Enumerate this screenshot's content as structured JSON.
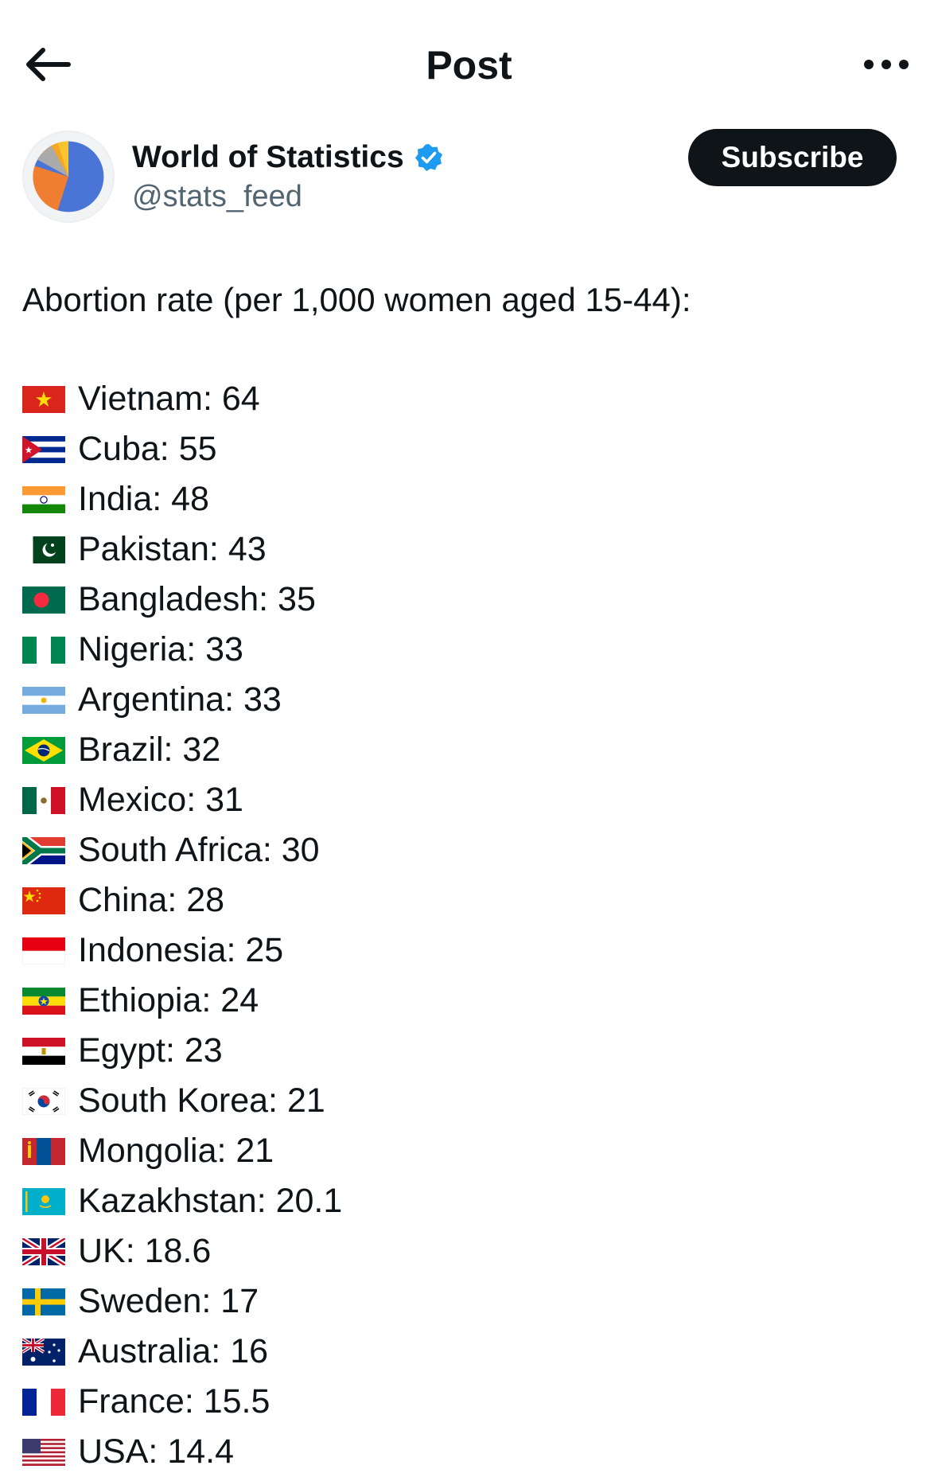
{
  "header": {
    "title": "Post",
    "back_icon": "arrow-left-icon",
    "more_icon": "more-horizontal-icon"
  },
  "author": {
    "name": "World of Statistics",
    "handle": "@stats_feed",
    "verified": true,
    "verified_color": "#1d9bf0",
    "avatar_icon": "pie-chart-avatar",
    "subscribe_label": "Subscribe"
  },
  "post": {
    "intro": "Abortion rate (per 1,000 women aged 15-44):",
    "items": [
      {
        "flag": "vietnam-flag-icon",
        "text": "Vietnam: 64"
      },
      {
        "flag": "cuba-flag-icon",
        "text": "Cuba: 55"
      },
      {
        "flag": "india-flag-icon",
        "text": "India: 48"
      },
      {
        "flag": "pakistan-flag-icon",
        "text": "Pakistan: 43"
      },
      {
        "flag": "bangladesh-flag-icon",
        "text": "Bangladesh: 35"
      },
      {
        "flag": "nigeria-flag-icon",
        "text": "Nigeria: 33"
      },
      {
        "flag": "argentina-flag-icon",
        "text": "Argentina: 33"
      },
      {
        "flag": "brazil-flag-icon",
        "text": "Brazil: 32"
      },
      {
        "flag": "mexico-flag-icon",
        "text": "Mexico: 31"
      },
      {
        "flag": "south-africa-flag-icon",
        "text": "South Africa: 30"
      },
      {
        "flag": "china-flag-icon",
        "text": "China: 28"
      },
      {
        "flag": "indonesia-flag-icon",
        "text": "Indonesia: 25"
      },
      {
        "flag": "ethiopia-flag-icon",
        "text": "Ethiopia: 24"
      },
      {
        "flag": "egypt-flag-icon",
        "text": "Egypt: 23"
      },
      {
        "flag": "south-korea-flag-icon",
        "text": "South Korea: 21"
      },
      {
        "flag": "mongolia-flag-icon",
        "text": "Mongolia: 21"
      },
      {
        "flag": "kazakhstan-flag-icon",
        "text": "Kazakhstan: 20.1"
      },
      {
        "flag": "uk-flag-icon",
        "text": "UK: 18.6"
      },
      {
        "flag": "sweden-flag-icon",
        "text": "Sweden: 17"
      },
      {
        "flag": "australia-flag-icon",
        "text": "Australia: 16"
      },
      {
        "flag": "france-flag-icon",
        "text": "France: 15.5"
      },
      {
        "flag": "usa-flag-icon",
        "text": "USA: 14.4"
      }
    ]
  }
}
